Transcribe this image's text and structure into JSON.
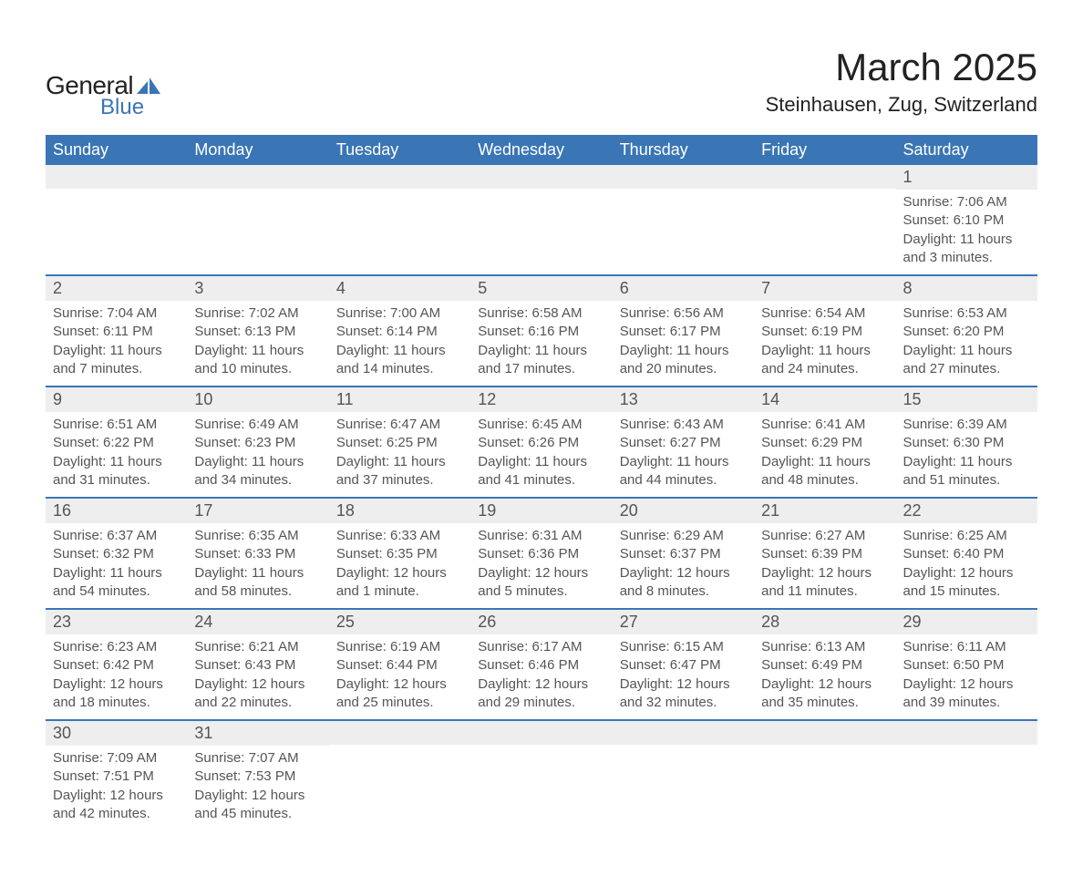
{
  "branding": {
    "logo_word1": "General",
    "logo_word2": "Blue",
    "logo_color_dark": "#222222",
    "logo_color_blue": "#3a76b5"
  },
  "header": {
    "month_title": "March 2025",
    "location": "Steinhausen, Zug, Switzerland"
  },
  "calendar": {
    "header_bg": "#3a76b5",
    "header_fg": "#ffffff",
    "row_divider_color": "#3a76b5",
    "daynum_bg": "#eeeeee",
    "text_color": "#555555",
    "weekdays": [
      "Sunday",
      "Monday",
      "Tuesday",
      "Wednesday",
      "Thursday",
      "Friday",
      "Saturday"
    ],
    "weeks": [
      [
        null,
        null,
        null,
        null,
        null,
        null,
        {
          "n": "1",
          "sunrise": "Sunrise: 7:06 AM",
          "sunset": "Sunset: 6:10 PM",
          "daylight": "Daylight: 11 hours and 3 minutes."
        }
      ],
      [
        {
          "n": "2",
          "sunrise": "Sunrise: 7:04 AM",
          "sunset": "Sunset: 6:11 PM",
          "daylight": "Daylight: 11 hours and 7 minutes."
        },
        {
          "n": "3",
          "sunrise": "Sunrise: 7:02 AM",
          "sunset": "Sunset: 6:13 PM",
          "daylight": "Daylight: 11 hours and 10 minutes."
        },
        {
          "n": "4",
          "sunrise": "Sunrise: 7:00 AM",
          "sunset": "Sunset: 6:14 PM",
          "daylight": "Daylight: 11 hours and 14 minutes."
        },
        {
          "n": "5",
          "sunrise": "Sunrise: 6:58 AM",
          "sunset": "Sunset: 6:16 PM",
          "daylight": "Daylight: 11 hours and 17 minutes."
        },
        {
          "n": "6",
          "sunrise": "Sunrise: 6:56 AM",
          "sunset": "Sunset: 6:17 PM",
          "daylight": "Daylight: 11 hours and 20 minutes."
        },
        {
          "n": "7",
          "sunrise": "Sunrise: 6:54 AM",
          "sunset": "Sunset: 6:19 PM",
          "daylight": "Daylight: 11 hours and 24 minutes."
        },
        {
          "n": "8",
          "sunrise": "Sunrise: 6:53 AM",
          "sunset": "Sunset: 6:20 PM",
          "daylight": "Daylight: 11 hours and 27 minutes."
        }
      ],
      [
        {
          "n": "9",
          "sunrise": "Sunrise: 6:51 AM",
          "sunset": "Sunset: 6:22 PM",
          "daylight": "Daylight: 11 hours and 31 minutes."
        },
        {
          "n": "10",
          "sunrise": "Sunrise: 6:49 AM",
          "sunset": "Sunset: 6:23 PM",
          "daylight": "Daylight: 11 hours and 34 minutes."
        },
        {
          "n": "11",
          "sunrise": "Sunrise: 6:47 AM",
          "sunset": "Sunset: 6:25 PM",
          "daylight": "Daylight: 11 hours and 37 minutes."
        },
        {
          "n": "12",
          "sunrise": "Sunrise: 6:45 AM",
          "sunset": "Sunset: 6:26 PM",
          "daylight": "Daylight: 11 hours and 41 minutes."
        },
        {
          "n": "13",
          "sunrise": "Sunrise: 6:43 AM",
          "sunset": "Sunset: 6:27 PM",
          "daylight": "Daylight: 11 hours and 44 minutes."
        },
        {
          "n": "14",
          "sunrise": "Sunrise: 6:41 AM",
          "sunset": "Sunset: 6:29 PM",
          "daylight": "Daylight: 11 hours and 48 minutes."
        },
        {
          "n": "15",
          "sunrise": "Sunrise: 6:39 AM",
          "sunset": "Sunset: 6:30 PM",
          "daylight": "Daylight: 11 hours and 51 minutes."
        }
      ],
      [
        {
          "n": "16",
          "sunrise": "Sunrise: 6:37 AM",
          "sunset": "Sunset: 6:32 PM",
          "daylight": "Daylight: 11 hours and 54 minutes."
        },
        {
          "n": "17",
          "sunrise": "Sunrise: 6:35 AM",
          "sunset": "Sunset: 6:33 PM",
          "daylight": "Daylight: 11 hours and 58 minutes."
        },
        {
          "n": "18",
          "sunrise": "Sunrise: 6:33 AM",
          "sunset": "Sunset: 6:35 PM",
          "daylight": "Daylight: 12 hours and 1 minute."
        },
        {
          "n": "19",
          "sunrise": "Sunrise: 6:31 AM",
          "sunset": "Sunset: 6:36 PM",
          "daylight": "Daylight: 12 hours and 5 minutes."
        },
        {
          "n": "20",
          "sunrise": "Sunrise: 6:29 AM",
          "sunset": "Sunset: 6:37 PM",
          "daylight": "Daylight: 12 hours and 8 minutes."
        },
        {
          "n": "21",
          "sunrise": "Sunrise: 6:27 AM",
          "sunset": "Sunset: 6:39 PM",
          "daylight": "Daylight: 12 hours and 11 minutes."
        },
        {
          "n": "22",
          "sunrise": "Sunrise: 6:25 AM",
          "sunset": "Sunset: 6:40 PM",
          "daylight": "Daylight: 12 hours and 15 minutes."
        }
      ],
      [
        {
          "n": "23",
          "sunrise": "Sunrise: 6:23 AM",
          "sunset": "Sunset: 6:42 PM",
          "daylight": "Daylight: 12 hours and 18 minutes."
        },
        {
          "n": "24",
          "sunrise": "Sunrise: 6:21 AM",
          "sunset": "Sunset: 6:43 PM",
          "daylight": "Daylight: 12 hours and 22 minutes."
        },
        {
          "n": "25",
          "sunrise": "Sunrise: 6:19 AM",
          "sunset": "Sunset: 6:44 PM",
          "daylight": "Daylight: 12 hours and 25 minutes."
        },
        {
          "n": "26",
          "sunrise": "Sunrise: 6:17 AM",
          "sunset": "Sunset: 6:46 PM",
          "daylight": "Daylight: 12 hours and 29 minutes."
        },
        {
          "n": "27",
          "sunrise": "Sunrise: 6:15 AM",
          "sunset": "Sunset: 6:47 PM",
          "daylight": "Daylight: 12 hours and 32 minutes."
        },
        {
          "n": "28",
          "sunrise": "Sunrise: 6:13 AM",
          "sunset": "Sunset: 6:49 PM",
          "daylight": "Daylight: 12 hours and 35 minutes."
        },
        {
          "n": "29",
          "sunrise": "Sunrise: 6:11 AM",
          "sunset": "Sunset: 6:50 PM",
          "daylight": "Daylight: 12 hours and 39 minutes."
        }
      ],
      [
        {
          "n": "30",
          "sunrise": "Sunrise: 7:09 AM",
          "sunset": "Sunset: 7:51 PM",
          "daylight": "Daylight: 12 hours and 42 minutes."
        },
        {
          "n": "31",
          "sunrise": "Sunrise: 7:07 AM",
          "sunset": "Sunset: 7:53 PM",
          "daylight": "Daylight: 12 hours and 45 minutes."
        },
        null,
        null,
        null,
        null,
        null
      ]
    ]
  }
}
